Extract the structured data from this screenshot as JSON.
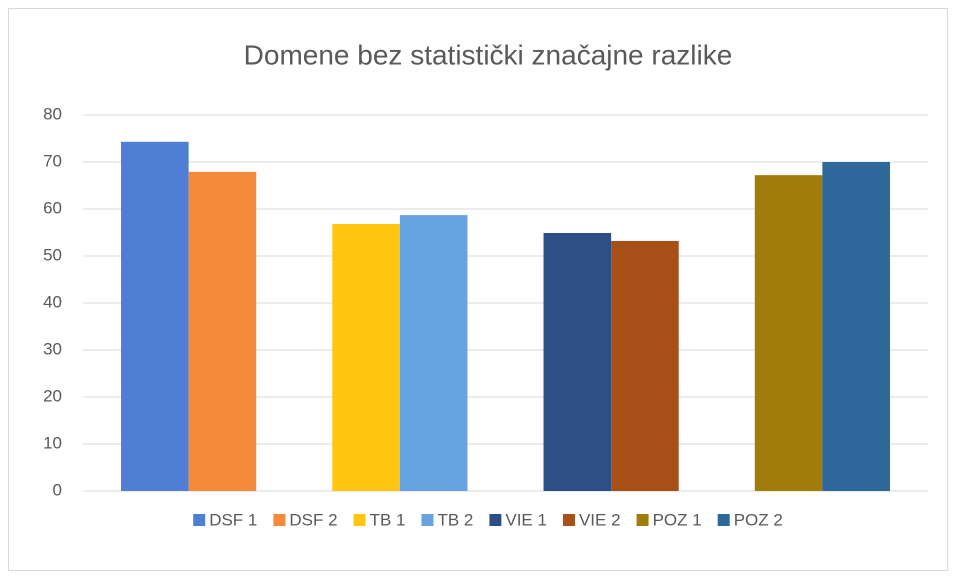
{
  "chart_data": {
    "type": "bar",
    "title": "Domene bez statistički značajne razlike",
    "categories": [
      null,
      null,
      null,
      null
    ],
    "series": [
      {
        "name": "DSF 1",
        "color": "#4e7fd5",
        "values": [
          74.3,
          null,
          null,
          null
        ]
      },
      {
        "name": "DSF 2",
        "color": "#f58a3b",
        "values": [
          67.9,
          null,
          null,
          null
        ]
      },
      {
        "name": "TB 1",
        "color": "#ffc50f",
        "values": [
          null,
          56.8,
          null,
          null
        ]
      },
      {
        "name": "TB 2",
        "color": "#67a3e0",
        "values": [
          null,
          58.7,
          null,
          null
        ]
      },
      {
        "name": "VIE 1",
        "color": "#2e4f85",
        "values": [
          null,
          null,
          54.9,
          null
        ]
      },
      {
        "name": "VIE 2",
        "color": "#a64f17",
        "values": [
          null,
          null,
          53.2,
          null
        ]
      },
      {
        "name": "POZ 1",
        "color": "#a07d0b",
        "values": [
          null,
          null,
          null,
          67.2
        ]
      },
      {
        "name": "POZ 2",
        "color": "#2e679a",
        "values": [
          null,
          null,
          null,
          70.0
        ]
      }
    ],
    "ylim": [
      0,
      80
    ],
    "yticks": [
      0,
      10,
      20,
      30,
      40,
      50,
      60,
      70,
      80
    ],
    "grid": true,
    "legend": "bottom"
  }
}
